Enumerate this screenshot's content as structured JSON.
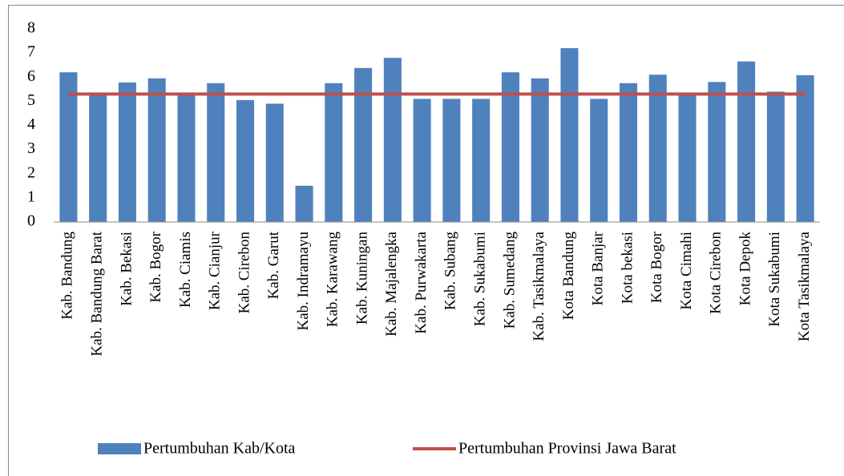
{
  "chart_data": {
    "type": "bar",
    "categories": [
      "Kab. Bandung",
      "Kab. Bandung Barat",
      "Kab. Bekasi",
      "Kab. Bogor",
      "Kab. Ciamis",
      "Kab. Cianjur",
      "Kab. Cirebon",
      "Kab. Garut",
      "Kab. Indramayu",
      "Kab. Karawang",
      "Kab. Kuningan",
      "Kab. Majalengka",
      "Kab. Purwakarta",
      "Kab. Subang",
      "Kab. Sukabumi",
      "Kab. Sumedang",
      "Kab. Tasikmalaya",
      "Kota Bandung",
      "Kota Banjar",
      "Kota bekasi",
      "Kota Bogor",
      "Kota Cimahi",
      "Kota Cirebon",
      "Kota Depok",
      "Kota Sukabumi",
      "Kota Tasikmalaya"
    ],
    "series": [
      {
        "name": "Pertumbuhan Kab/Kota",
        "color": "#4f81bd",
        "type": "bar",
        "values": [
          6.2,
          5.3,
          5.78,
          5.95,
          5.3,
          5.75,
          5.05,
          4.9,
          1.5,
          5.75,
          6.38,
          6.8,
          5.1,
          5.1,
          5.1,
          6.2,
          5.95,
          7.2,
          5.1,
          5.75,
          6.1,
          5.3,
          5.8,
          6.65,
          5.4,
          6.08
        ]
      },
      {
        "name": "Pertumbuhan Provinsi Jawa Barat",
        "color": "#c0504d",
        "type": "line",
        "values": [
          5.3,
          5.3,
          5.3,
          5.3,
          5.3,
          5.3,
          5.3,
          5.3,
          5.3,
          5.3,
          5.3,
          5.3,
          5.3,
          5.3,
          5.3,
          5.3,
          5.3,
          5.3,
          5.3,
          5.3,
          5.3,
          5.3,
          5.3,
          5.3,
          5.3,
          5.3
        ]
      }
    ],
    "ylim": [
      0,
      8
    ],
    "yticks": [
      0,
      1,
      2,
      3,
      4,
      5,
      6,
      7,
      8
    ],
    "grid": false,
    "legend": "bottom"
  }
}
